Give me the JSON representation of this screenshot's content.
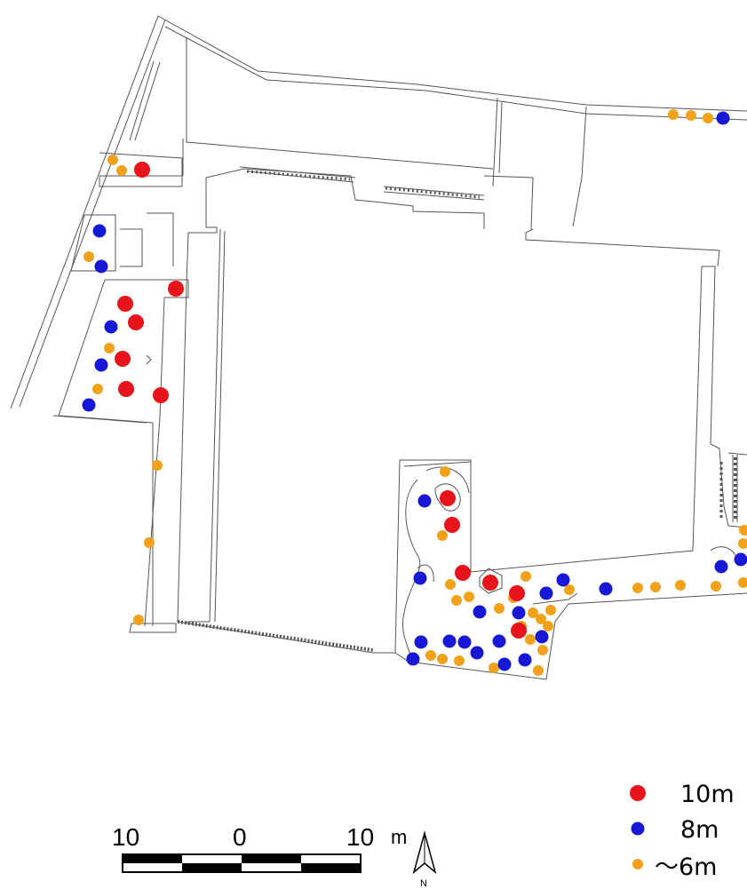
{
  "colors": {
    "line": "#555555",
    "red": "#e8141c",
    "blue": "#1717d6",
    "orange": "#f0a21a"
  },
  "legend": [
    {
      "label": "10m",
      "color": "#e8141c",
      "size": "large"
    },
    {
      "label": "8m",
      "color": "#1717d6",
      "size": "medium"
    },
    {
      "label": "～6m",
      "color": "#f0a21a",
      "size": "small"
    }
  ],
  "scale_bar": {
    "left_label": "10",
    "center_label": "0",
    "right_label": "10",
    "unit": "m"
  },
  "north_arrow": {
    "label": "N"
  },
  "trees": {
    "red": [
      [
        160,
        191
      ],
      [
        198,
        325
      ],
      [
        141,
        342
      ],
      [
        153,
        363
      ],
      [
        138,
        404
      ],
      [
        142,
        438
      ],
      [
        181,
        445
      ],
      [
        504,
        561
      ],
      [
        509,
        591
      ],
      [
        521,
        645
      ],
      [
        552,
        656
      ],
      [
        582,
        668
      ],
      [
        584,
        710
      ]
    ],
    "blue": [
      [
        814,
        133
      ],
      [
        112,
        260
      ],
      [
        114,
        300
      ],
      [
        125,
        368
      ],
      [
        114,
        411
      ],
      [
        100,
        456
      ],
      [
        478,
        564
      ],
      [
        473,
        651
      ],
      [
        540,
        689
      ],
      [
        634,
        653
      ],
      [
        615,
        668
      ],
      [
        584,
        690
      ],
      [
        682,
        663
      ],
      [
        812,
        638
      ],
      [
        834,
        630
      ],
      [
        474,
        723
      ],
      [
        506,
        722
      ],
      [
        523,
        723
      ],
      [
        562,
        722
      ],
      [
        610,
        717
      ],
      [
        537,
        735
      ],
      [
        465,
        742
      ],
      [
        591,
        743
      ],
      [
        568,
        748
      ]
    ],
    "orange": [
      [
        758,
        129
      ],
      [
        778,
        130
      ],
      [
        797,
        133
      ],
      [
        127,
        180
      ],
      [
        137,
        192
      ],
      [
        100,
        289
      ],
      [
        123,
        392
      ],
      [
        110,
        438
      ],
      [
        177,
        524
      ],
      [
        168,
        611
      ],
      [
        156,
        698
      ],
      [
        501,
        531
      ],
      [
        498,
        603
      ],
      [
        507,
        658
      ],
      [
        514,
        676
      ],
      [
        528,
        672
      ],
      [
        592,
        649
      ],
      [
        578,
        673
      ],
      [
        562,
        685
      ],
      [
        600,
        690
      ],
      [
        609,
        697
      ],
      [
        620,
        687
      ],
      [
        617,
        705
      ],
      [
        587,
        705
      ],
      [
        597,
        720
      ],
      [
        611,
        732
      ],
      [
        485,
        738
      ],
      [
        498,
        742
      ],
      [
        517,
        744
      ],
      [
        556,
        752
      ],
      [
        606,
        755
      ],
      [
        641,
        664
      ],
      [
        718,
        662
      ],
      [
        738,
        661
      ],
      [
        766,
        659
      ],
      [
        806,
        660
      ],
      [
        838,
        597
      ],
      [
        837,
        612
      ],
      [
        837,
        656
      ]
    ]
  }
}
